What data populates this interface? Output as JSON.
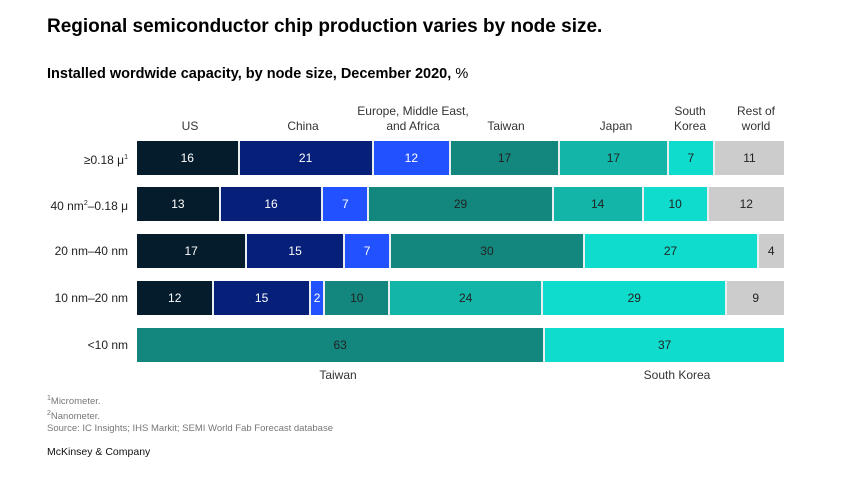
{
  "title": "Regional semiconductor chip production varies by node size.",
  "chart_data": {
    "type": "bar",
    "orientation": "horizontal-stacked-100",
    "subtitle": "Installed wordwide capacity, by node size, December 2020,",
    "unit": "%",
    "regions": [
      {
        "name": "US",
        "color": "#051c2c"
      },
      {
        "name": "China",
        "color": "#061f79"
      },
      {
        "name": "Europe, Middle East, and Africa",
        "color": "#2251ff"
      },
      {
        "name": "Taiwan",
        "color": "#13877e"
      },
      {
        "name": "Japan",
        "color": "#13b5a9"
      },
      {
        "name": "South Korea",
        "color": "#0fdccc"
      },
      {
        "name": "Rest of world",
        "color": "#cccccc"
      }
    ],
    "header_labels": [
      {
        "text": "US",
        "lines": [
          "US"
        ]
      },
      {
        "text": "China",
        "lines": [
          "China"
        ]
      },
      {
        "text": "Europe, Middle East, and Africa",
        "lines": [
          "Europe, Middle East,",
          "and Africa"
        ]
      },
      {
        "text": "Taiwan",
        "lines": [
          "Taiwan"
        ]
      },
      {
        "text": "Japan",
        "lines": [
          "Japan"
        ]
      },
      {
        "text": "South Korea",
        "lines": [
          "South",
          "Korea"
        ]
      },
      {
        "text": "Rest of world",
        "lines": [
          "Rest of",
          "world"
        ]
      }
    ],
    "rows": [
      {
        "label": "≥0.18 μ",
        "sup": "1",
        "segments": [
          [
            "US",
            16
          ],
          [
            "China",
            21
          ],
          [
            "Europe, Middle East, and Africa",
            12
          ],
          [
            "Taiwan",
            17
          ],
          [
            "Japan",
            17
          ],
          [
            "South Korea",
            7
          ],
          [
            "Rest of world",
            11
          ]
        ]
      },
      {
        "label": "40 nm",
        "sup": "2",
        "label_tail": "–0.18 μ",
        "segments": [
          [
            "US",
            13
          ],
          [
            "China",
            16
          ],
          [
            "Europe, Middle East, and Africa",
            7
          ],
          [
            "Taiwan",
            29
          ],
          [
            "Japan",
            14
          ],
          [
            "South Korea",
            10
          ],
          [
            "Rest of world",
            12
          ]
        ]
      },
      {
        "label": "20 nm–40 nm",
        "segments": [
          [
            "US",
            17
          ],
          [
            "China",
            15
          ],
          [
            "Europe, Middle East, and Africa",
            7
          ],
          [
            "Taiwan",
            30
          ],
          [
            "South Korea",
            27
          ],
          [
            "Rest of world",
            4
          ]
        ]
      },
      {
        "label": "10 nm–20 nm",
        "segments": [
          [
            "US",
            12
          ],
          [
            "China",
            15
          ],
          [
            "Europe, Middle East, and Africa",
            2
          ],
          [
            "Taiwan",
            10
          ],
          [
            "Japan",
            24
          ],
          [
            "South Korea",
            29
          ],
          [
            "Rest of world",
            9
          ]
        ]
      },
      {
        "label": "<10 nm",
        "segments": [
          [
            "Taiwan",
            63
          ],
          [
            "South Korea",
            37
          ]
        ]
      }
    ],
    "bottom_labels": [
      "Taiwan",
      "South Korea"
    ]
  },
  "footnotes": [
    "Micrometer.",
    "Nanometer."
  ],
  "footnote_marks": [
    "1",
    "2"
  ],
  "source": "Source: IC Insights; IHS Markit; SEMI World Fab Forecast database",
  "brand": "McKinsey & Company"
}
